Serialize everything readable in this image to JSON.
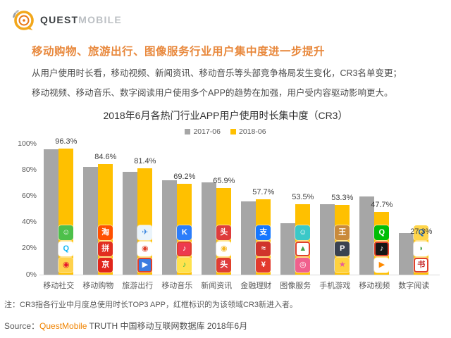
{
  "logo": {
    "brand_bold": "QUEST",
    "brand_light": "MOBILE"
  },
  "headline": "移动购物、旅游出行、图像服务行业用户集中度进一步提升",
  "body": {
    "line1": "从用户使用时长看，移动视频、新闻资讯、移动音乐等头部竞争格局发生变化，CR3名单变更；",
    "line2": "移动视频、移动音乐、数字阅读用户使用多个APP的趋势在加强，用户受内容驱动影响更大。"
  },
  "chart_data": {
    "type": "bar",
    "title": "2018年6月各热门行业APP用户使用时长集中度（CR3）",
    "categories": [
      "移动社交",
      "移动购物",
      "旅游出行",
      "移动音乐",
      "新闻资讯",
      "金融理财",
      "图像服务",
      "手机游戏",
      "移动视频",
      "数字阅读"
    ],
    "series": [
      {
        "name": "2017-06",
        "color": "#A6A6A6",
        "values": [
          95.8,
          82.5,
          78.5,
          72.0,
          70.5,
          56.0,
          39.5,
          54.0,
          59.5,
          31.5
        ],
        "note": "values estimated from bar heights (unlabeled)"
      },
      {
        "name": "2018-06",
        "color": "#FFC000",
        "values": [
          96.3,
          84.6,
          81.4,
          69.2,
          65.9,
          57.7,
          53.5,
          53.3,
          47.7,
          27.3
        ]
      }
    ],
    "value_labels": [
      "96.3%",
      "84.6%",
      "81.4%",
      "69.2%",
      "65.9%",
      "57.7%",
      "53.5%",
      "53.3%",
      "47.7%",
      "27.3%"
    ],
    "ylabel": "",
    "ylim": [
      0,
      100
    ],
    "yticks": [
      0,
      20,
      40,
      60,
      80,
      100
    ],
    "ytick_labels": [
      "0%",
      "20%",
      "40%",
      "60%",
      "80%",
      "100%"
    ],
    "grid": false,
    "legend_position": "top",
    "red_frame_meaning": "红框标识的为该领域CR3新进入者",
    "red_frame_color": "#E0402A",
    "icons": [
      [
        {
          "name": "wechat-icon",
          "glyph": "☺",
          "fg": "#ffffff",
          "bg": "#4DC04A",
          "framed": false
        },
        {
          "name": "qq-icon",
          "glyph": "Q",
          "fg": "#12B7F5",
          "bg": "#ffffff",
          "framed": false
        },
        {
          "name": "weibo-icon",
          "glyph": "◉",
          "fg": "#E6162D",
          "bg": "#FFD24D",
          "framed": false
        }
      ],
      [
        {
          "name": "taobao-icon",
          "glyph": "淘",
          "fg": "#ffffff",
          "bg": "#FF5000",
          "framed": false
        },
        {
          "name": "pinduoduo-icon",
          "glyph": "拼",
          "fg": "#ffffff",
          "bg": "#E22E1F",
          "framed": false
        },
        {
          "name": "jd-icon",
          "glyph": "京",
          "fg": "#ffffff",
          "bg": "#E1251B",
          "framed": false
        }
      ],
      [
        {
          "name": "map-plane-icon",
          "glyph": "✈",
          "fg": "#3D87E0",
          "bg": "#EAF4FB",
          "framed": false
        },
        {
          "name": "map-pin-icon",
          "glyph": "◉",
          "fg": "#E0402A",
          "bg": "#ffffff",
          "framed": false
        },
        {
          "name": "navigation-app-icon",
          "glyph": "▶",
          "fg": "#ffffff",
          "bg": "#3A7BE0",
          "framed": true
        }
      ],
      [
        {
          "name": "kugou-music-icon",
          "glyph": "K",
          "fg": "#ffffff",
          "bg": "#2C7DFA",
          "framed": false
        },
        {
          "name": "karaoke-app-icon",
          "glyph": "♪",
          "fg": "#ffffff",
          "bg": "#ED3A4F",
          "framed": true
        },
        {
          "name": "qq-music-icon",
          "glyph": "♪",
          "fg": "#3EBD4E",
          "bg": "#FFE24D",
          "framed": false
        }
      ],
      [
        {
          "name": "toutiao-icon",
          "glyph": "头",
          "fg": "#ffffff",
          "bg": "#DE3C3C",
          "framed": false
        },
        {
          "name": "tencent-news-icon",
          "glyph": "◉",
          "fg": "#F3B61F",
          "bg": "#ffffff",
          "framed": false
        },
        {
          "name": "toutiao-lite-icon",
          "glyph": "头",
          "fg": "#ffffff",
          "bg": "#DE3C3C",
          "framed": true
        }
      ],
      [
        {
          "name": "alipay-icon",
          "glyph": "支",
          "fg": "#ffffff",
          "bg": "#1677FF",
          "framed": false
        },
        {
          "name": "finance-app-icon",
          "glyph": "≈",
          "fg": "#ffffff",
          "bg": "#D0342C",
          "framed": false
        },
        {
          "name": "bank-app-icon",
          "glyph": "¥",
          "fg": "#ffffff",
          "bg": "#E23A2E",
          "framed": false
        }
      ],
      [
        {
          "name": "selfie-camera-icon",
          "glyph": "☺",
          "fg": "#ffffff",
          "bg": "#3BC8C8",
          "framed": false
        },
        {
          "name": "photo-editor-icon",
          "glyph": "▲",
          "fg": "#43A047",
          "bg": "#ffffff",
          "framed": true
        },
        {
          "name": "beauty-camera-icon",
          "glyph": "◎",
          "fg": "#ffffff",
          "bg": "#F0608D",
          "framed": false
        }
      ],
      [
        {
          "name": "honor-of-kings-icon",
          "glyph": "王",
          "fg": "#ffffff",
          "bg": "#C98A3B",
          "framed": false
        },
        {
          "name": "battle-royale-game-icon",
          "glyph": "P",
          "fg": "#ffffff",
          "bg": "#3A4250",
          "framed": false
        },
        {
          "name": "casual-game-icon",
          "glyph": "★",
          "fg": "#E85A9B",
          "bg": "#FFD23E",
          "framed": false
        }
      ],
      [
        {
          "name": "iqiyi-icon",
          "glyph": "Q",
          "fg": "#ffffff",
          "bg": "#00BE06",
          "framed": false
        },
        {
          "name": "douyin-icon",
          "glyph": "♪",
          "fg": "#ffffff",
          "bg": "#161616",
          "framed": true
        },
        {
          "name": "tencent-video-icon",
          "glyph": "▶",
          "fg": "#FF8A00",
          "bg": "#ffffff",
          "framed": false
        }
      ],
      [
        {
          "name": "qq-reading-icon",
          "glyph": "Q",
          "fg": "#1565C0",
          "bg": "#FFD54A",
          "framed": false
        },
        {
          "name": "reading-app-icon",
          "glyph": "◗",
          "fg": "#43A047",
          "bg": "#ffffff",
          "framed": false
        },
        {
          "name": "novel-app-icon",
          "glyph": "书",
          "fg": "#C62828",
          "bg": "#ffffff",
          "framed": true
        }
      ]
    ]
  },
  "note": "注：CR3指各行业中月度总使用时长TOP3 APP，红框标识的为该领域CR3新进入者。",
  "source": {
    "prefix": "Source：",
    "brand": "QuestMobile",
    "rest": " TRUTH 中国移动互联网数据库 2018年6月"
  },
  "colors": {
    "headline": "#E8883C",
    "brand_orange": "#F08300",
    "bar_2017": "#A6A6A6",
    "bar_2018": "#FFC000",
    "axis": "#D9D9D9",
    "red_frame": "#E0402A"
  }
}
